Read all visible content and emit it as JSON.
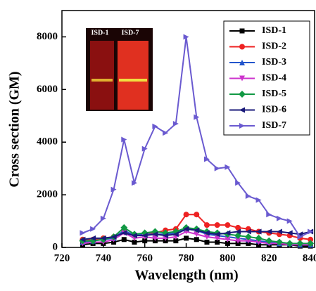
{
  "chart_data": {
    "type": "line",
    "x_label": "Wavelength (nm)",
    "y_label": "Cross section (GM)",
    "x": [
      730,
      735,
      740,
      745,
      750,
      755,
      760,
      765,
      770,
      775,
      780,
      785,
      790,
      795,
      800,
      805,
      810,
      815,
      820,
      825,
      830,
      835,
      840
    ],
    "xlim": [
      720,
      842
    ],
    "xticks": [
      720,
      740,
      760,
      780,
      800,
      820,
      840
    ],
    "ylim": [
      0,
      9000
    ],
    "yticks": [
      0,
      2000,
      4000,
      6000,
      8000
    ],
    "legend": "upper right",
    "inset_labels": [
      "ISD-1",
      "ISD-7"
    ],
    "series": [
      {
        "name": "ISD-1",
        "color": "#000000",
        "marker": "square",
        "values": [
          100,
          150,
          150,
          200,
          300,
          200,
          250,
          250,
          250,
          250,
          350,
          300,
          200,
          200,
          150,
          150,
          150,
          100,
          100,
          100,
          100,
          50,
          50
        ]
      },
      {
        "name": "ISD-2",
        "color": "#ee2222",
        "marker": "circle",
        "values": [
          300,
          300,
          350,
          400,
          600,
          450,
          500,
          550,
          650,
          700,
          1250,
          1250,
          850,
          850,
          850,
          750,
          700,
          600,
          550,
          500,
          450,
          350,
          300
        ]
      },
      {
        "name": "ISD-3",
        "color": "#2255cc",
        "marker": "triangle-up",
        "values": [
          200,
          250,
          300,
          350,
          650,
          450,
          500,
          500,
          500,
          550,
          700,
          650,
          500,
          450,
          400,
          350,
          300,
          250,
          200,
          150,
          150,
          100,
          100
        ]
      },
      {
        "name": "ISD-4",
        "color": "#cc33cc",
        "marker": "triangle-down",
        "values": [
          150,
          200,
          200,
          300,
          550,
          350,
          400,
          350,
          350,
          400,
          600,
          500,
          400,
          350,
          300,
          250,
          250,
          200,
          150,
          150,
          100,
          100,
          100
        ]
      },
      {
        "name": "ISD-5",
        "color": "#119944",
        "marker": "diamond",
        "values": [
          250,
          250,
          300,
          400,
          750,
          500,
          550,
          600,
          550,
          600,
          750,
          700,
          600,
          550,
          500,
          450,
          400,
          350,
          250,
          200,
          150,
          150,
          150
        ]
      },
      {
        "name": "ISD-6",
        "color": "#1a1a7a",
        "marker": "triangle-left",
        "values": [
          300,
          350,
          350,
          400,
          550,
          450,
          450,
          500,
          450,
          500,
          700,
          650,
          550,
          500,
          550,
          600,
          600,
          600,
          600,
          600,
          550,
          500,
          600
        ]
      },
      {
        "name": "ISD-7",
        "color": "#6a5ad0",
        "marker": "triangle-right",
        "values": [
          550,
          700,
          1100,
          2200,
          4100,
          2450,
          3750,
          4600,
          4350,
          4700,
          8000,
          4950,
          3350,
          3000,
          3050,
          2450,
          1950,
          1800,
          1250,
          1100,
          1000,
          400,
          600
        ]
      }
    ]
  }
}
